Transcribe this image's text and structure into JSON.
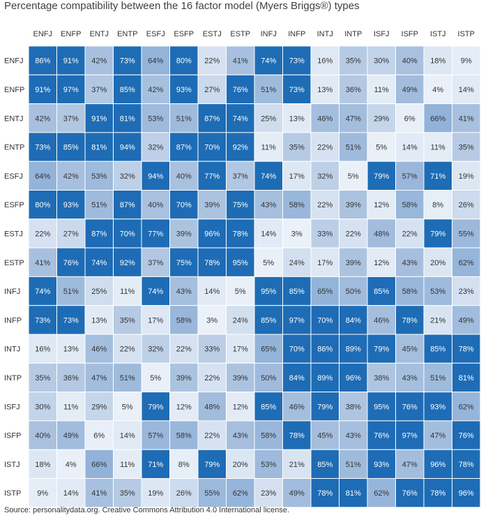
{
  "title": "Percentage compatibility between the 16 factor model (Myers Briggs®) types",
  "source": "Source: personalitydata.org. Creative Commons Attribution 4.0 International license.",
  "colors": {
    "low": "#eef3fa",
    "mid": "#a9c1df",
    "high": "#1e6cb5",
    "gridline": "#ffffff",
    "text_dark": "#333333",
    "text_light": "#ffffff"
  },
  "chart_data": {
    "type": "heatmap",
    "title": "Percentage compatibility between the 16 factor model (Myers Briggs®) types",
    "value_suffix": "%",
    "x_categories": [
      "ENFJ",
      "ENFP",
      "ENTJ",
      "ENTP",
      "ESFJ",
      "ESFP",
      "ESTJ",
      "ESTP",
      "INFJ",
      "INFP",
      "INTJ",
      "INTP",
      "ISFJ",
      "ISFP",
      "ISTJ",
      "ISTP"
    ],
    "y_categories": [
      "ENFJ",
      "ENFP",
      "ENTJ",
      "ENTP",
      "ESFJ",
      "ESFP",
      "ESTJ",
      "ESTP",
      "INFJ",
      "INFP",
      "INTJ",
      "INTP",
      "ISFJ",
      "ISFP",
      "ISTJ",
      "ISTP"
    ],
    "values": [
      [
        86,
        91,
        42,
        73,
        64,
        80,
        22,
        41,
        74,
        73,
        16,
        35,
        30,
        40,
        18,
        9
      ],
      [
        91,
        97,
        37,
        85,
        42,
        93,
        27,
        76,
        51,
        73,
        13,
        36,
        11,
        49,
        4,
        14
      ],
      [
        42,
        37,
        91,
        81,
        53,
        51,
        87,
        74,
        25,
        13,
        46,
        47,
        29,
        6,
        66,
        41
      ],
      [
        73,
        85,
        81,
        94,
        32,
        87,
        70,
        92,
        11,
        35,
        22,
        51,
        5,
        14,
        11,
        35
      ],
      [
        64,
        42,
        53,
        32,
        94,
        40,
        77,
        37,
        74,
        17,
        32,
        5,
        79,
        57,
        71,
        19
      ],
      [
        80,
        93,
        51,
        87,
        40,
        70,
        39,
        75,
        43,
        58,
        22,
        39,
        12,
        58,
        8,
        26
      ],
      [
        22,
        27,
        87,
        70,
        77,
        39,
        96,
        78,
        14,
        3,
        33,
        22,
        48,
        22,
        79,
        55
      ],
      [
        41,
        76,
        74,
        92,
        37,
        75,
        78,
        95,
        5,
        24,
        17,
        39,
        12,
        43,
        20,
        62
      ],
      [
        74,
        51,
        25,
        11,
        74,
        43,
        14,
        5,
        95,
        85,
        65,
        50,
        85,
        58,
        53,
        23
      ],
      [
        73,
        73,
        13,
        35,
        17,
        58,
        3,
        24,
        85,
        97,
        70,
        84,
        46,
        78,
        21,
        49
      ],
      [
        16,
        13,
        46,
        22,
        32,
        22,
        33,
        17,
        65,
        70,
        86,
        89,
        79,
        45,
        85,
        78
      ],
      [
        35,
        36,
        47,
        51,
        5,
        39,
        22,
        39,
        50,
        84,
        89,
        96,
        38,
        43,
        51,
        81
      ],
      [
        30,
        11,
        29,
        5,
        79,
        12,
        48,
        12,
        85,
        46,
        79,
        38,
        95,
        76,
        93,
        62
      ],
      [
        40,
        49,
        6,
        14,
        57,
        58,
        22,
        43,
        58,
        78,
        45,
        43,
        76,
        97,
        47,
        76
      ],
      [
        18,
        4,
        66,
        11,
        71,
        8,
        79,
        20,
        53,
        21,
        85,
        51,
        93,
        47,
        96,
        78
      ],
      [
        9,
        14,
        41,
        35,
        19,
        26,
        55,
        62,
        23,
        49,
        78,
        81,
        62,
        76,
        78,
        96
      ]
    ]
  }
}
